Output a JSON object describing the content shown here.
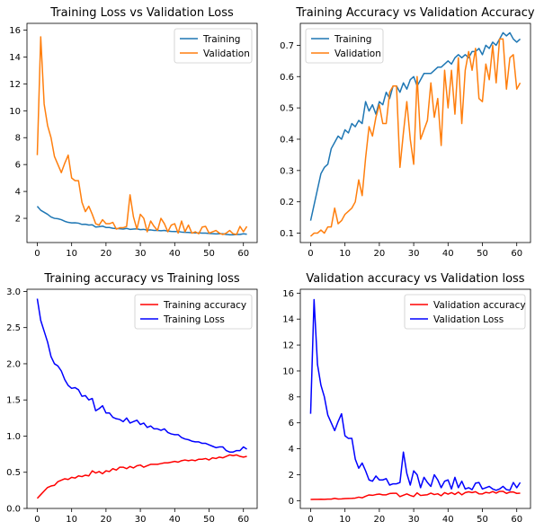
{
  "chart_data": [
    {
      "type": "line",
      "title": "Training Loss vs Validation Loss",
      "xlabel": "",
      "ylabel": "",
      "xlim": [
        -3,
        64
      ],
      "ylim": [
        0.2,
        16.5
      ],
      "xticks": [
        0,
        10,
        20,
        30,
        40,
        50,
        60
      ],
      "yticks": [
        2,
        4,
        6,
        8,
        10,
        12,
        14,
        16
      ],
      "grid": false,
      "legend_placement": "top-right",
      "series": [
        {
          "name": "Training",
          "color": "#1f77b4",
          "x": [
            0,
            1,
            2,
            3,
            4,
            5,
            6,
            7,
            8,
            9,
            10,
            11,
            12,
            13,
            14,
            15,
            16,
            17,
            18,
            19,
            20,
            21,
            22,
            23,
            24,
            25,
            26,
            27,
            28,
            29,
            30,
            31,
            32,
            33,
            34,
            35,
            36,
            37,
            38,
            39,
            40,
            41,
            42,
            43,
            44,
            45,
            46,
            47,
            48,
            49,
            50,
            51,
            52,
            53,
            54,
            55,
            56,
            57,
            58,
            59,
            60,
            61
          ],
          "values": [
            2.9,
            2.6,
            2.45,
            2.3,
            2.1,
            2.0,
            1.97,
            1.9,
            1.78,
            1.7,
            1.66,
            1.67,
            1.64,
            1.55,
            1.56,
            1.5,
            1.52,
            1.35,
            1.38,
            1.42,
            1.32,
            1.32,
            1.26,
            1.24,
            1.23,
            1.2,
            1.25,
            1.18,
            1.2,
            1.22,
            1.16,
            1.18,
            1.12,
            1.14,
            1.1,
            1.1,
            1.08,
            1.1,
            1.05,
            1.03,
            1.02,
            1.02,
            0.98,
            0.96,
            0.95,
            0.93,
            0.92,
            0.92,
            0.9,
            0.9,
            0.88,
            0.86,
            0.84,
            0.85,
            0.85,
            0.8,
            0.78,
            0.78,
            0.8,
            0.8,
            0.85,
            0.82
          ]
        },
        {
          "name": "Validation",
          "color": "#ff7f0e",
          "x": [
            0,
            1,
            2,
            3,
            4,
            5,
            6,
            7,
            8,
            9,
            10,
            11,
            12,
            13,
            14,
            15,
            16,
            17,
            18,
            19,
            20,
            21,
            22,
            23,
            24,
            25,
            26,
            27,
            28,
            29,
            30,
            31,
            32,
            33,
            34,
            35,
            36,
            37,
            38,
            39,
            40,
            41,
            42,
            43,
            44,
            45,
            46,
            47,
            48,
            49,
            50,
            51,
            52,
            53,
            54,
            55,
            56,
            57,
            58,
            59,
            60,
            61
          ],
          "values": [
            6.7,
            15.5,
            10.5,
            8.9,
            8.0,
            6.6,
            6.0,
            5.4,
            6.1,
            6.7,
            5.0,
            4.8,
            4.8,
            3.2,
            2.5,
            2.9,
            2.3,
            1.6,
            1.5,
            1.9,
            1.6,
            1.6,
            1.7,
            1.2,
            1.3,
            1.3,
            1.4,
            3.75,
            2.1,
            1.2,
            2.3,
            2.0,
            1.0,
            1.8,
            1.4,
            1.1,
            2.0,
            1.6,
            1.0,
            1.5,
            1.6,
            0.9,
            1.8,
            1.0,
            1.5,
            0.9,
            1.0,
            0.85,
            1.35,
            1.4,
            0.9,
            1.0,
            1.1,
            0.9,
            0.8,
            0.9,
            1.1,
            0.85,
            0.8,
            1.4,
            1.0,
            1.4
          ]
        }
      ]
    },
    {
      "type": "line",
      "title": "Training Accuracy vs Validation Accuracy",
      "xlabel": "",
      "ylabel": "",
      "xlim": [
        -3,
        64
      ],
      "ylim": [
        0.07,
        0.77
      ],
      "xticks": [
        0,
        10,
        20,
        30,
        40,
        50,
        60
      ],
      "yticks": [
        0.1,
        0.2,
        0.3,
        0.4,
        0.5,
        0.6,
        0.7
      ],
      "grid": false,
      "legend_placement": "top-left",
      "series": [
        {
          "name": "Training",
          "color": "#1f77b4",
          "x": [
            0,
            1,
            2,
            3,
            4,
            5,
            6,
            7,
            8,
            9,
            10,
            11,
            12,
            13,
            14,
            15,
            16,
            17,
            18,
            19,
            20,
            21,
            22,
            23,
            24,
            25,
            26,
            27,
            28,
            29,
            30,
            31,
            32,
            33,
            34,
            35,
            36,
            37,
            38,
            39,
            40,
            41,
            42,
            43,
            44,
            45,
            46,
            47,
            48,
            49,
            50,
            51,
            52,
            53,
            54,
            55,
            56,
            57,
            58,
            59,
            60,
            61
          ],
          "values": [
            0.14,
            0.19,
            0.24,
            0.29,
            0.31,
            0.32,
            0.37,
            0.39,
            0.41,
            0.4,
            0.43,
            0.42,
            0.45,
            0.44,
            0.46,
            0.45,
            0.52,
            0.49,
            0.51,
            0.48,
            0.52,
            0.51,
            0.55,
            0.53,
            0.57,
            0.57,
            0.55,
            0.58,
            0.56,
            0.59,
            0.6,
            0.57,
            0.59,
            0.61,
            0.61,
            0.61,
            0.62,
            0.63,
            0.63,
            0.64,
            0.65,
            0.64,
            0.66,
            0.67,
            0.66,
            0.67,
            0.66,
            0.68,
            0.68,
            0.69,
            0.67,
            0.7,
            0.69,
            0.71,
            0.7,
            0.72,
            0.74,
            0.73,
            0.74,
            0.72,
            0.71,
            0.72
          ]
        },
        {
          "name": "Validation",
          "color": "#ff7f0e",
          "x": [
            0,
            1,
            2,
            3,
            4,
            5,
            6,
            7,
            8,
            9,
            10,
            11,
            12,
            13,
            14,
            15,
            16,
            17,
            18,
            19,
            20,
            21,
            22,
            23,
            24,
            25,
            26,
            27,
            28,
            29,
            30,
            31,
            32,
            33,
            34,
            35,
            36,
            37,
            38,
            39,
            40,
            41,
            42,
            43,
            44,
            45,
            46,
            47,
            48,
            49,
            50,
            51,
            52,
            53,
            54,
            55,
            56,
            57,
            58,
            59,
            60,
            61
          ],
          "values": [
            0.09,
            0.1,
            0.1,
            0.11,
            0.1,
            0.12,
            0.12,
            0.18,
            0.13,
            0.14,
            0.16,
            0.17,
            0.18,
            0.2,
            0.27,
            0.22,
            0.34,
            0.44,
            0.41,
            0.47,
            0.51,
            0.45,
            0.45,
            0.55,
            0.57,
            0.57,
            0.31,
            0.42,
            0.52,
            0.4,
            0.32,
            0.6,
            0.4,
            0.43,
            0.46,
            0.58,
            0.47,
            0.53,
            0.38,
            0.62,
            0.5,
            0.62,
            0.48,
            0.66,
            0.45,
            0.62,
            0.68,
            0.62,
            0.69,
            0.53,
            0.52,
            0.64,
            0.59,
            0.7,
            0.58,
            0.72,
            0.72,
            0.56,
            0.66,
            0.67,
            0.56,
            0.58
          ]
        }
      ]
    },
    {
      "type": "line",
      "title": "Training accuracy vs Training loss",
      "xlabel": "",
      "ylabel": "",
      "xlim": [
        -3,
        64
      ],
      "ylim": [
        0.0,
        3.03
      ],
      "xticks": [
        0,
        10,
        20,
        30,
        40,
        50,
        60
      ],
      "yticks": [
        0.0,
        0.5,
        1.0,
        1.5,
        2.0,
        2.5,
        3.0
      ],
      "grid": false,
      "legend_placement": "top-right",
      "series": [
        {
          "name": "Training accuracy",
          "color": "#ff0000",
          "x": [
            0,
            1,
            2,
            3,
            4,
            5,
            6,
            7,
            8,
            9,
            10,
            11,
            12,
            13,
            14,
            15,
            16,
            17,
            18,
            19,
            20,
            21,
            22,
            23,
            24,
            25,
            26,
            27,
            28,
            29,
            30,
            31,
            32,
            33,
            34,
            35,
            36,
            37,
            38,
            39,
            40,
            41,
            42,
            43,
            44,
            45,
            46,
            47,
            48,
            49,
            50,
            51,
            52,
            53,
            54,
            55,
            56,
            57,
            58,
            59,
            60,
            61
          ],
          "values": [
            0.14,
            0.19,
            0.24,
            0.29,
            0.31,
            0.32,
            0.37,
            0.39,
            0.41,
            0.4,
            0.43,
            0.42,
            0.45,
            0.44,
            0.46,
            0.45,
            0.52,
            0.49,
            0.51,
            0.48,
            0.52,
            0.51,
            0.55,
            0.53,
            0.57,
            0.57,
            0.55,
            0.58,
            0.56,
            0.59,
            0.6,
            0.57,
            0.59,
            0.61,
            0.61,
            0.61,
            0.62,
            0.63,
            0.63,
            0.64,
            0.65,
            0.64,
            0.66,
            0.67,
            0.66,
            0.67,
            0.66,
            0.68,
            0.68,
            0.69,
            0.67,
            0.7,
            0.69,
            0.71,
            0.7,
            0.72,
            0.74,
            0.73,
            0.74,
            0.72,
            0.71,
            0.72
          ]
        },
        {
          "name": "Training Loss",
          "color": "#0000ff",
          "x": [
            0,
            1,
            2,
            3,
            4,
            5,
            6,
            7,
            8,
            9,
            10,
            11,
            12,
            13,
            14,
            15,
            16,
            17,
            18,
            19,
            20,
            21,
            22,
            23,
            24,
            25,
            26,
            27,
            28,
            29,
            30,
            31,
            32,
            33,
            34,
            35,
            36,
            37,
            38,
            39,
            40,
            41,
            42,
            43,
            44,
            45,
            46,
            47,
            48,
            49,
            50,
            51,
            52,
            53,
            54,
            55,
            56,
            57,
            58,
            59,
            60,
            61
          ],
          "values": [
            2.9,
            2.6,
            2.45,
            2.3,
            2.1,
            2.0,
            1.97,
            1.9,
            1.78,
            1.7,
            1.66,
            1.67,
            1.64,
            1.55,
            1.56,
            1.5,
            1.52,
            1.35,
            1.38,
            1.42,
            1.32,
            1.32,
            1.26,
            1.24,
            1.23,
            1.2,
            1.25,
            1.18,
            1.2,
            1.22,
            1.16,
            1.18,
            1.12,
            1.14,
            1.1,
            1.1,
            1.08,
            1.1,
            1.05,
            1.03,
            1.02,
            1.02,
            0.98,
            0.96,
            0.95,
            0.93,
            0.92,
            0.92,
            0.9,
            0.9,
            0.88,
            0.86,
            0.84,
            0.85,
            0.85,
            0.8,
            0.78,
            0.78,
            0.8,
            0.8,
            0.85,
            0.82
          ]
        }
      ]
    },
    {
      "type": "line",
      "title": "Validation accuracy vs Validation loss",
      "xlabel": "",
      "ylabel": "",
      "xlim": [
        -3,
        64
      ],
      "ylim": [
        -0.6,
        16.3
      ],
      "xticks": [
        0,
        10,
        20,
        30,
        40,
        50,
        60
      ],
      "yticks": [
        0,
        2,
        4,
        6,
        8,
        10,
        12,
        14,
        16
      ],
      "grid": false,
      "legend_placement": "top-right",
      "series": [
        {
          "name": "Validation accuracy",
          "color": "#ff0000",
          "x": [
            0,
            1,
            2,
            3,
            4,
            5,
            6,
            7,
            8,
            9,
            10,
            11,
            12,
            13,
            14,
            15,
            16,
            17,
            18,
            19,
            20,
            21,
            22,
            23,
            24,
            25,
            26,
            27,
            28,
            29,
            30,
            31,
            32,
            33,
            34,
            35,
            36,
            37,
            38,
            39,
            40,
            41,
            42,
            43,
            44,
            45,
            46,
            47,
            48,
            49,
            50,
            51,
            52,
            53,
            54,
            55,
            56,
            57,
            58,
            59,
            60,
            61
          ],
          "values": [
            0.09,
            0.1,
            0.1,
            0.11,
            0.1,
            0.12,
            0.12,
            0.18,
            0.13,
            0.14,
            0.16,
            0.17,
            0.18,
            0.2,
            0.27,
            0.22,
            0.34,
            0.44,
            0.41,
            0.47,
            0.51,
            0.45,
            0.45,
            0.55,
            0.57,
            0.57,
            0.31,
            0.42,
            0.52,
            0.4,
            0.32,
            0.6,
            0.4,
            0.43,
            0.46,
            0.58,
            0.47,
            0.53,
            0.38,
            0.62,
            0.5,
            0.62,
            0.48,
            0.66,
            0.45,
            0.62,
            0.68,
            0.62,
            0.69,
            0.53,
            0.52,
            0.64,
            0.59,
            0.7,
            0.58,
            0.72,
            0.72,
            0.56,
            0.66,
            0.67,
            0.56,
            0.58
          ]
        },
        {
          "name": "Validation Loss",
          "color": "#0000ff",
          "x": [
            0,
            1,
            2,
            3,
            4,
            5,
            6,
            7,
            8,
            9,
            10,
            11,
            12,
            13,
            14,
            15,
            16,
            17,
            18,
            19,
            20,
            21,
            22,
            23,
            24,
            25,
            26,
            27,
            28,
            29,
            30,
            31,
            32,
            33,
            34,
            35,
            36,
            37,
            38,
            39,
            40,
            41,
            42,
            43,
            44,
            45,
            46,
            47,
            48,
            49,
            50,
            51,
            52,
            53,
            54,
            55,
            56,
            57,
            58,
            59,
            60,
            61
          ],
          "values": [
            6.7,
            15.5,
            10.5,
            8.9,
            8.0,
            6.6,
            6.0,
            5.4,
            6.1,
            6.7,
            5.0,
            4.8,
            4.8,
            3.2,
            2.5,
            2.9,
            2.3,
            1.6,
            1.5,
            1.9,
            1.6,
            1.6,
            1.7,
            1.2,
            1.3,
            1.3,
            1.4,
            3.75,
            2.1,
            1.2,
            2.3,
            2.0,
            1.0,
            1.8,
            1.4,
            1.1,
            2.0,
            1.6,
            1.0,
            1.5,
            1.6,
            0.9,
            1.8,
            1.0,
            1.5,
            0.9,
            1.0,
            0.85,
            1.35,
            1.4,
            0.9,
            1.0,
            1.1,
            0.9,
            0.8,
            0.9,
            1.1,
            0.85,
            0.8,
            1.4,
            1.0,
            1.4
          ]
        }
      ]
    }
  ]
}
